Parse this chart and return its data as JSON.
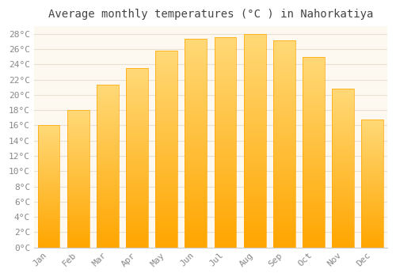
{
  "title": "Average monthly temperatures (°C ) in Nahorkatiya",
  "months": [
    "Jan",
    "Feb",
    "Mar",
    "Apr",
    "May",
    "Jun",
    "Jul",
    "Aug",
    "Sep",
    "Oct",
    "Nov",
    "Dec"
  ],
  "values": [
    16.0,
    18.0,
    21.3,
    23.5,
    25.8,
    27.4,
    27.6,
    28.0,
    27.2,
    25.0,
    20.8,
    16.8
  ],
  "bar_color_bottom": "#FFA500",
  "bar_color_top": "#FFD580",
  "bar_edge_color": "#FFA500",
  "ylim": [
    0,
    29
  ],
  "yticks": [
    0,
    2,
    4,
    6,
    8,
    10,
    12,
    14,
    16,
    18,
    20,
    22,
    24,
    26,
    28
  ],
  "background_color": "#ffffff",
  "plot_bg_color": "#fdf8f0",
  "grid_color": "#e8e0d0",
  "title_fontsize": 10,
  "tick_fontsize": 8,
  "title_color": "#444444",
  "tick_color": "#888888"
}
